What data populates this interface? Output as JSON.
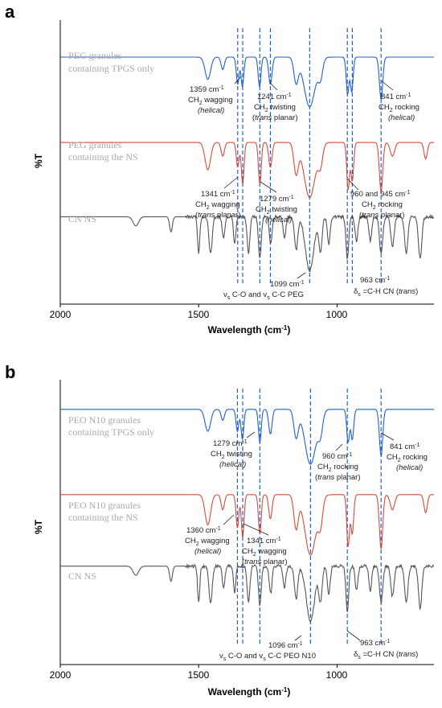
{
  "chart_data": [
    {
      "type": "line",
      "panel_label": "a",
      "xlabel": "Wavelength (cm",
      "xlabel_sup": "-1",
      "xlabel_end": ")",
      "ylabel": "%T",
      "xlim": [
        2000,
        650
      ],
      "xticks": [
        2000,
        1500,
        1000
      ],
      "series": [
        {
          "name": "PEG granules\ncontaining TPGS only",
          "color": "#1f5fd6",
          "offset": 0.12,
          "scale": 0.18,
          "peaks": [
            [
              1467,
              0.45,
              10
            ],
            [
              1413,
              0.25,
              6
            ],
            [
              1359,
              0.55,
              5
            ],
            [
              1342,
              0.6,
              5
            ],
            [
              1280,
              0.6,
              5
            ],
            [
              1241,
              0.55,
              6
            ],
            [
              1148,
              0.5,
              8
            ],
            [
              1099,
              1.0,
              20
            ],
            [
              1060,
              0.35,
              8
            ],
            [
              962,
              0.75,
              5
            ],
            [
              947,
              0.7,
              5
            ],
            [
              841,
              0.85,
              6
            ]
          ]
        },
        {
          "name": "PEG granules\ncontaining the NS",
          "color": "#d94a3a",
          "offset": 0.43,
          "scale": 0.2,
          "peaks": [
            [
              1467,
              0.5,
              10
            ],
            [
              1413,
              0.25,
              6
            ],
            [
              1359,
              0.45,
              5
            ],
            [
              1341,
              0.75,
              5
            ],
            [
              1279,
              0.75,
              5
            ],
            [
              1241,
              0.45,
              6
            ],
            [
              1148,
              0.55,
              8
            ],
            [
              1099,
              1.0,
              20
            ],
            [
              1060,
              0.35,
              8
            ],
            [
              960,
              0.85,
              5
            ],
            [
              945,
              0.7,
              5
            ],
            [
              841,
              0.9,
              6
            ],
            [
              800,
              0.25,
              8
            ],
            [
              680,
              0.3,
              6
            ]
          ]
        },
        {
          "name": "CN NS",
          "color": "#555555",
          "offset": 0.7,
          "scale": 0.22,
          "peaks": [
            [
              1727,
              0.15,
              10
            ],
            [
              1600,
              0.25,
              5
            ],
            [
              1500,
              0.6,
              4
            ],
            [
              1457,
              0.6,
              6
            ],
            [
              1410,
              0.35,
              5
            ],
            [
              1370,
              0.45,
              4
            ],
            [
              1320,
              0.6,
              5
            ],
            [
              1279,
              0.7,
              5
            ],
            [
              1240,
              0.45,
              5
            ],
            [
              1190,
              0.35,
              5
            ],
            [
              1148,
              0.55,
              6
            ],
            [
              1099,
              0.9,
              15
            ],
            [
              1060,
              0.55,
              6
            ],
            [
              1030,
              0.45,
              5
            ],
            [
              963,
              0.7,
              5
            ],
            [
              930,
              0.4,
              5
            ],
            [
              880,
              0.4,
              5
            ],
            [
              841,
              0.6,
              6
            ],
            [
              800,
              0.5,
              6
            ],
            [
              750,
              0.6,
              6
            ],
            [
              700,
              0.7,
              6
            ]
          ]
        }
      ],
      "reference_lines_cm1": [
        1359,
        1341,
        1279,
        1241,
        1099,
        963,
        945,
        841
      ],
      "annotations": [
        {
          "lines": [
            "1359 cm",
            "CH",
            "wagging",
            "helical"
          ]
        },
        {
          "lines": [
            "1241 cm",
            "CH",
            "twisting",
            "trans planar"
          ]
        },
        {
          "lines": [
            "841 cm",
            "CH",
            "rocking",
            "helical"
          ]
        },
        {
          "lines": [
            "1341 cm",
            "CH",
            "wagging",
            "trans planar"
          ]
        },
        {
          "lines": [
            "1279 cm",
            "CH",
            "twisting",
            "helical"
          ]
        },
        {
          "lines": [
            "960 and 945 cm",
            "CH",
            "rocking",
            "trans planar"
          ]
        },
        {
          "lines": [
            "1099 cm",
            "v",
            "C-O and v",
            "C-C PEG"
          ]
        },
        {
          "lines": [
            "963 cm",
            "δ",
            "=C-H CN (",
            "trans",
            ")"
          ]
        }
      ]
    },
    {
      "type": "line",
      "panel_label": "b",
      "xlabel": "Wavelength (cm",
      "xlabel_sup": "-1",
      "xlabel_end": ")",
      "ylabel": "%T",
      "xlim": [
        2000,
        650
      ],
      "xticks": [
        2000,
        1500,
        1000
      ],
      "series": [
        {
          "name": "PEO N10 granules\ncontaining TPGS only",
          "color": "#1f5fd6",
          "offset": 0.09,
          "scale": 0.2,
          "peaks": [
            [
              1467,
              0.4,
              10
            ],
            [
              1413,
              0.2,
              6
            ],
            [
              1360,
              0.4,
              5
            ],
            [
              1342,
              0.55,
              5
            ],
            [
              1279,
              0.6,
              5
            ],
            [
              1241,
              0.45,
              6
            ],
            [
              1148,
              0.5,
              8
            ],
            [
              1096,
              1.0,
              20
            ],
            [
              1060,
              0.35,
              8
            ],
            [
              960,
              0.6,
              5
            ],
            [
              945,
              0.55,
              5
            ],
            [
              841,
              0.85,
              6
            ]
          ]
        },
        {
          "name": "PEO N10 granules\ncontaining the NS",
          "color": "#d94a3a",
          "offset": 0.4,
          "scale": 0.22,
          "peaks": [
            [
              1467,
              0.5,
              10
            ],
            [
              1413,
              0.25,
              6
            ],
            [
              1360,
              0.55,
              5
            ],
            [
              1341,
              0.7,
              5
            ],
            [
              1279,
              0.65,
              5
            ],
            [
              1241,
              0.4,
              6
            ],
            [
              1148,
              0.55,
              8
            ],
            [
              1096,
              1.0,
              20
            ],
            [
              1060,
              0.4,
              8
            ],
            [
              960,
              0.85,
              5
            ],
            [
              945,
              0.65,
              5
            ],
            [
              841,
              0.9,
              6
            ],
            [
              800,
              0.25,
              8
            ],
            [
              680,
              0.3,
              6
            ]
          ]
        },
        {
          "name": "CN NS",
          "color": "#555555",
          "offset": 0.66,
          "scale": 0.22,
          "peaks": [
            [
              1727,
              0.15,
              10
            ],
            [
              1600,
              0.25,
              5
            ],
            [
              1500,
              0.6,
              4
            ],
            [
              1457,
              0.6,
              6
            ],
            [
              1410,
              0.35,
              5
            ],
            [
              1370,
              0.45,
              4
            ],
            [
              1320,
              0.6,
              5
            ],
            [
              1279,
              0.65,
              5
            ],
            [
              1240,
              0.45,
              5
            ],
            [
              1190,
              0.35,
              5
            ],
            [
              1148,
              0.55,
              6
            ],
            [
              1096,
              0.9,
              15
            ],
            [
              1060,
              0.55,
              6
            ],
            [
              1030,
              0.45,
              5
            ],
            [
              963,
              0.75,
              5
            ],
            [
              930,
              0.4,
              5
            ],
            [
              880,
              0.4,
              5
            ],
            [
              841,
              0.6,
              6
            ],
            [
              800,
              0.5,
              6
            ],
            [
              750,
              0.6,
              6
            ],
            [
              700,
              0.7,
              6
            ]
          ]
        }
      ],
      "reference_lines_cm1": [
        1360,
        1341,
        1279,
        1096,
        963,
        841
      ],
      "annotations": [
        {
          "lines": [
            "1279 cm",
            "CH",
            "twisting",
            "helical"
          ]
        },
        {
          "lines": [
            "960 cm",
            "CH",
            "rocking",
            "trans planar"
          ]
        },
        {
          "lines": [
            "841 cm",
            "CH",
            "rocking",
            "helical"
          ]
        },
        {
          "lines": [
            "1360 cm",
            "CH",
            "wagging",
            "helical"
          ]
        },
        {
          "lines": [
            "1341 cm",
            "CH",
            "wagging",
            "trans planar"
          ]
        },
        {
          "lines": [
            "1096 cm",
            "v",
            "C-O and v",
            "C-C PEO N10"
          ]
        },
        {
          "lines": [
            "963 cm",
            "δ",
            "=C-H CN (",
            "trans",
            ")"
          ]
        }
      ]
    }
  ]
}
